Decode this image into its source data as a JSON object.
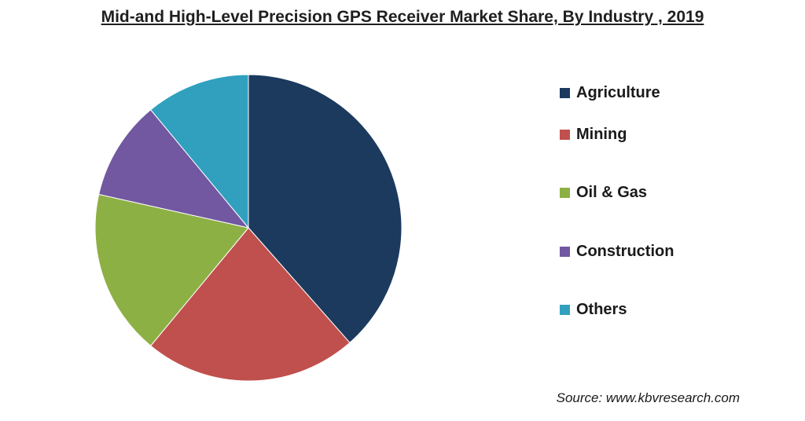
{
  "chart_data": {
    "type": "pie",
    "title": "Mid-and High-Level Precision GPS Receiver Market Share, By Industry , 2019",
    "categories": [
      "Agriculture",
      "Mining",
      "Oil & Gas",
      "Construction",
      "Others"
    ],
    "values": [
      38.5,
      22.5,
      17.5,
      10.5,
      11.0
    ],
    "colors": [
      "#1b3a5e",
      "#c0504d",
      "#8db045",
      "#7158a0",
      "#31a0bf"
    ],
    "legend_position": "right"
  },
  "source": "Source: www.kbvresearch.com"
}
